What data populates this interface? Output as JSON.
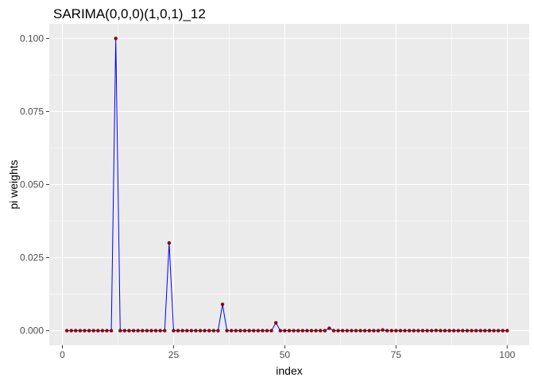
{
  "chart_data": {
    "type": "line",
    "title": "SARIMA(0,0,0)(1,0,1)_12",
    "xlabel": "index",
    "ylabel": "pi weights",
    "xlim": [
      -2.95,
      104.95
    ],
    "ylim": [
      -0.005,
      0.105
    ],
    "x_ticks": [
      0,
      25,
      50,
      75,
      100
    ],
    "y_ticks": [
      0.0,
      0.025,
      0.05,
      0.075,
      0.1
    ],
    "x_tick_labels": [
      "0",
      "25",
      "50",
      "75",
      "100"
    ],
    "y_tick_labels": [
      "0.000",
      "0.025",
      "0.050",
      "0.075",
      "0.100"
    ],
    "grid": true,
    "background": "#ebebeb",
    "line_color": "#0000ff",
    "point_color": "#8b0000",
    "x": [
      1,
      2,
      3,
      4,
      5,
      6,
      7,
      8,
      9,
      10,
      11,
      12,
      13,
      14,
      15,
      16,
      17,
      18,
      19,
      20,
      21,
      22,
      23,
      24,
      25,
      26,
      27,
      28,
      29,
      30,
      31,
      32,
      33,
      34,
      35,
      36,
      37,
      38,
      39,
      40,
      41,
      42,
      43,
      44,
      45,
      46,
      47,
      48,
      49,
      50,
      51,
      52,
      53,
      54,
      55,
      56,
      57,
      58,
      59,
      60,
      61,
      62,
      63,
      64,
      65,
      66,
      67,
      68,
      69,
      70,
      71,
      72,
      73,
      74,
      75,
      76,
      77,
      78,
      79,
      80,
      81,
      82,
      83,
      84,
      85,
      86,
      87,
      88,
      89,
      90,
      91,
      92,
      93,
      94,
      95,
      96,
      97,
      98,
      99,
      100
    ],
    "values": [
      0,
      0,
      0,
      0,
      0,
      0,
      0,
      0,
      0,
      0,
      0,
      0.1,
      0,
      0,
      0,
      0,
      0,
      0,
      0,
      0,
      0,
      0,
      0,
      0.03,
      0,
      0,
      0,
      0,
      0,
      0,
      0,
      0,
      0,
      0,
      0,
      0.009,
      0,
      0,
      0,
      0,
      0,
      0,
      0,
      0,
      0,
      0,
      0,
      0.0027,
      0,
      0,
      0,
      0,
      0,
      0,
      0,
      0,
      0,
      0,
      0,
      0.00081,
      0,
      0,
      0,
      0,
      0,
      0,
      0,
      0,
      0,
      0,
      0,
      0.000243,
      0,
      0,
      0,
      0,
      0,
      0,
      0,
      0,
      0,
      0,
      0,
      7.29e-05,
      0,
      0,
      0,
      0,
      0,
      0,
      0,
      0,
      0,
      0,
      0,
      2.19e-05,
      0,
      0,
      0,
      0
    ]
  }
}
